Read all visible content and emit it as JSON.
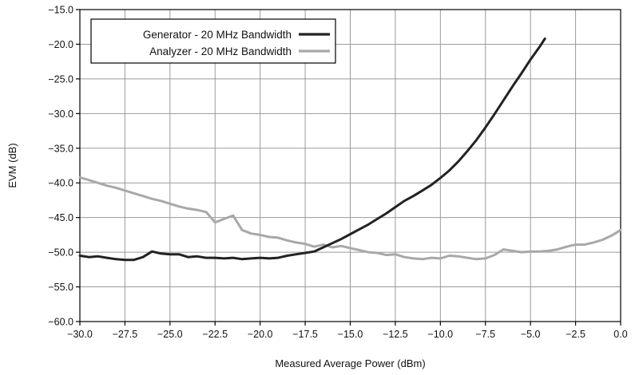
{
  "chart_data": {
    "type": "line",
    "title": "",
    "xlabel": "Measured Average Power (dBm)",
    "ylabel": "EVM (dB)",
    "xlim": [
      -30.0,
      0.0
    ],
    "ylim": [
      -60.0,
      -15.0
    ],
    "x_ticks": [
      -30.0,
      -27.5,
      -25.0,
      -22.5,
      -20.0,
      -17.5,
      -15.0,
      -12.5,
      -10.0,
      -7.5,
      -5.0,
      -2.5,
      0.0
    ],
    "y_ticks": [
      -15.0,
      -20.0,
      -25.0,
      -30.0,
      -35.0,
      -40.0,
      -45.0,
      -50.0,
      -55.0,
      -60.0
    ],
    "x_tick_labels": [
      "−30.0",
      "−27.5",
      "−25.0",
      "−22.5",
      "−20.0",
      "−17.5",
      "−15.0",
      "−12.5",
      "−10.0",
      "−7.5",
      "−5.0",
      "−2.5",
      "0.0"
    ],
    "y_tick_labels": [
      "−15.0",
      "−20.0",
      "−25.0",
      "−30.0",
      "−35.0",
      "−40.0",
      "−45.0",
      "−50.0",
      "−55.0",
      "−60.0"
    ],
    "grid": true,
    "legend_position": "top-left",
    "series": [
      {
        "name": "Generator - 20 MHz Bandwidth",
        "color": "#222222",
        "x": [
          -30.0,
          -29.5,
          -29.0,
          -28.5,
          -28.0,
          -27.5,
          -27.0,
          -26.5,
          -26.0,
          -25.5,
          -25.0,
          -24.5,
          -24.0,
          -23.5,
          -23.0,
          -22.5,
          -22.0,
          -21.5,
          -21.0,
          -20.5,
          -20.0,
          -19.5,
          -19.0,
          -18.5,
          -18.0,
          -17.5,
          -17.0,
          -16.5,
          -16.0,
          -15.5,
          -15.0,
          -14.5,
          -14.0,
          -13.5,
          -13.0,
          -12.5,
          -12.0,
          -11.5,
          -11.0,
          -10.5,
          -10.0,
          -9.5,
          -9.0,
          -8.5,
          -8.0,
          -7.5,
          -7.0,
          -6.5,
          -6.0,
          -5.5,
          -5.0,
          -4.5,
          -4.2
        ],
        "y": [
          -50.5,
          -50.7,
          -50.6,
          -50.8,
          -51.0,
          -51.1,
          -51.1,
          -50.7,
          -49.9,
          -50.2,
          -50.3,
          -50.3,
          -50.7,
          -50.6,
          -50.8,
          -50.8,
          -50.9,
          -50.8,
          -51.0,
          -50.9,
          -50.8,
          -50.9,
          -50.8,
          -50.5,
          -50.3,
          -50.1,
          -49.9,
          -49.3,
          -48.7,
          -48.1,
          -47.4,
          -46.7,
          -46.0,
          -45.2,
          -44.4,
          -43.5,
          -42.6,
          -41.9,
          -41.1,
          -40.3,
          -39.3,
          -38.2,
          -36.9,
          -35.4,
          -33.8,
          -32.0,
          -30.1,
          -28.1,
          -26.1,
          -24.2,
          -22.2,
          -20.4,
          -19.2
        ]
      },
      {
        "name": "Analyzer - 20 MHz Bandwidth",
        "color": "#a8a8a8",
        "x": [
          -30.0,
          -29.5,
          -29.0,
          -28.5,
          -28.0,
          -27.5,
          -27.0,
          -26.5,
          -26.0,
          -25.5,
          -25.0,
          -24.5,
          -24.0,
          -23.5,
          -23.0,
          -22.5,
          -22.0,
          -21.5,
          -21.0,
          -20.5,
          -20.0,
          -19.5,
          -19.0,
          -18.5,
          -18.0,
          -17.5,
          -17.0,
          -16.5,
          -16.0,
          -15.5,
          -15.0,
          -14.5,
          -14.0,
          -13.5,
          -13.0,
          -12.5,
          -12.0,
          -11.5,
          -11.0,
          -10.5,
          -10.0,
          -9.5,
          -9.0,
          -8.5,
          -8.0,
          -7.5,
          -7.0,
          -6.5,
          -6.0,
          -5.5,
          -5.0,
          -4.5,
          -4.0,
          -3.5,
          -3.0,
          -2.5,
          -2.0,
          -1.5,
          -1.0,
          -0.5,
          0.0
        ],
        "y": [
          -39.2,
          -39.6,
          -40.0,
          -40.4,
          -40.7,
          -41.1,
          -41.5,
          -41.9,
          -42.3,
          -42.6,
          -43.0,
          -43.4,
          -43.7,
          -43.9,
          -44.2,
          -45.7,
          -45.2,
          -44.7,
          -46.8,
          -47.3,
          -47.5,
          -47.8,
          -47.9,
          -48.3,
          -48.6,
          -48.8,
          -49.2,
          -48.9,
          -49.3,
          -49.1,
          -49.4,
          -49.7,
          -50.0,
          -50.1,
          -50.4,
          -50.3,
          -50.7,
          -50.9,
          -51.0,
          -50.8,
          -50.9,
          -50.5,
          -50.6,
          -50.8,
          -51.0,
          -50.9,
          -50.4,
          -49.6,
          -49.8,
          -50.0,
          -49.9,
          -49.9,
          -49.8,
          -49.6,
          -49.2,
          -48.9,
          -48.9,
          -48.6,
          -48.2,
          -47.6,
          -46.8
        ]
      }
    ]
  }
}
